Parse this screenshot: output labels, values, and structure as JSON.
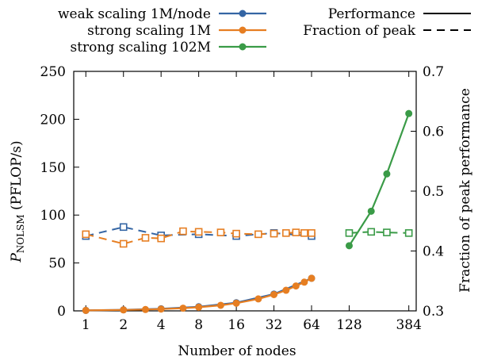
{
  "chart_data": {
    "type": "line",
    "xlabel": "Number of nodes",
    "ylabel_main": "P",
    "ylabel_sub": "NOLSM",
    "ylabel_unit": " (PFLOP/s)",
    "ylabel_right": "Fraction of peak performance",
    "x_scale": "log2",
    "xlim": [
      0.8,
      440
    ],
    "ylim": [
      0,
      250
    ],
    "ylim_right": [
      0.3,
      0.7
    ],
    "x_ticks": [
      1,
      2,
      4,
      8,
      16,
      32,
      64,
      128,
      384
    ],
    "x_tick_labels": [
      "1",
      "2",
      "4",
      "8",
      "16",
      "32",
      "64",
      "128",
      "384"
    ],
    "y_ticks": [
      0,
      50,
      100,
      150,
      200,
      250
    ],
    "y_tick_labels": [
      "0",
      "50",
      "100",
      "150",
      "200",
      "250"
    ],
    "y2_ticks": [
      0.3,
      0.4,
      0.5,
      0.6,
      0.7
    ],
    "y2_tick_labels": [
      "0.3",
      "0.4",
      "0.5",
      "0.6",
      "0.7"
    ],
    "grid": false,
    "legend_left": [
      {
        "label": "weak scaling 1M/node",
        "color": "#3465a4"
      },
      {
        "label": "strong scaling 1M",
        "color": "#e67e22"
      },
      {
        "label": "strong scaling 102M",
        "color": "#3a9b47"
      }
    ],
    "legend_right": [
      {
        "label": "Performance",
        "style": "solid"
      },
      {
        "label": "Fraction of peak",
        "style": "dashed"
      }
    ],
    "series": [
      {
        "name": "weak scaling 1M/node",
        "color": "#3465a4",
        "performance": {
          "x": [
            1,
            2,
            4,
            8,
            16,
            32,
            64
          ],
          "y": [
            0.5,
            1.1,
            2.2,
            4.3,
            8.5,
            17.5,
            34.0
          ]
        },
        "fraction": {
          "x": [
            1,
            2,
            4,
            8,
            16,
            32,
            64
          ],
          "y": [
            0.425,
            0.44,
            0.426,
            0.428,
            0.425,
            0.43,
            0.425
          ]
        }
      },
      {
        "name": "strong scaling 1M",
        "color": "#e67e22",
        "performance": {
          "x": [
            1,
            2,
            3,
            4,
            6,
            8,
            12,
            16,
            24,
            32,
            40,
            48,
            56,
            64
          ],
          "y": [
            0.5,
            1.0,
            1.4,
            1.9,
            2.8,
            3.8,
            5.8,
            8.0,
            12.5,
            17.0,
            21.5,
            26.0,
            30.0,
            34.0
          ]
        },
        "fraction": {
          "x": [
            1,
            2,
            3,
            4,
            6,
            8,
            12,
            16,
            24,
            32,
            40,
            48,
            56,
            64
          ],
          "y": [
            0.428,
            0.412,
            0.422,
            0.421,
            0.433,
            0.432,
            0.431,
            0.429,
            0.428,
            0.429,
            0.43,
            0.431,
            0.43,
            0.43
          ]
        }
      },
      {
        "name": "strong scaling 102M",
        "color": "#3a9b47",
        "performance": {
          "x": [
            128,
            192,
            256,
            384
          ],
          "y": [
            68,
            104,
            143,
            206
          ]
        },
        "fraction": {
          "x": [
            128,
            192,
            256,
            384
          ],
          "y": [
            0.43,
            0.432,
            0.431,
            0.43
          ]
        }
      }
    ]
  }
}
